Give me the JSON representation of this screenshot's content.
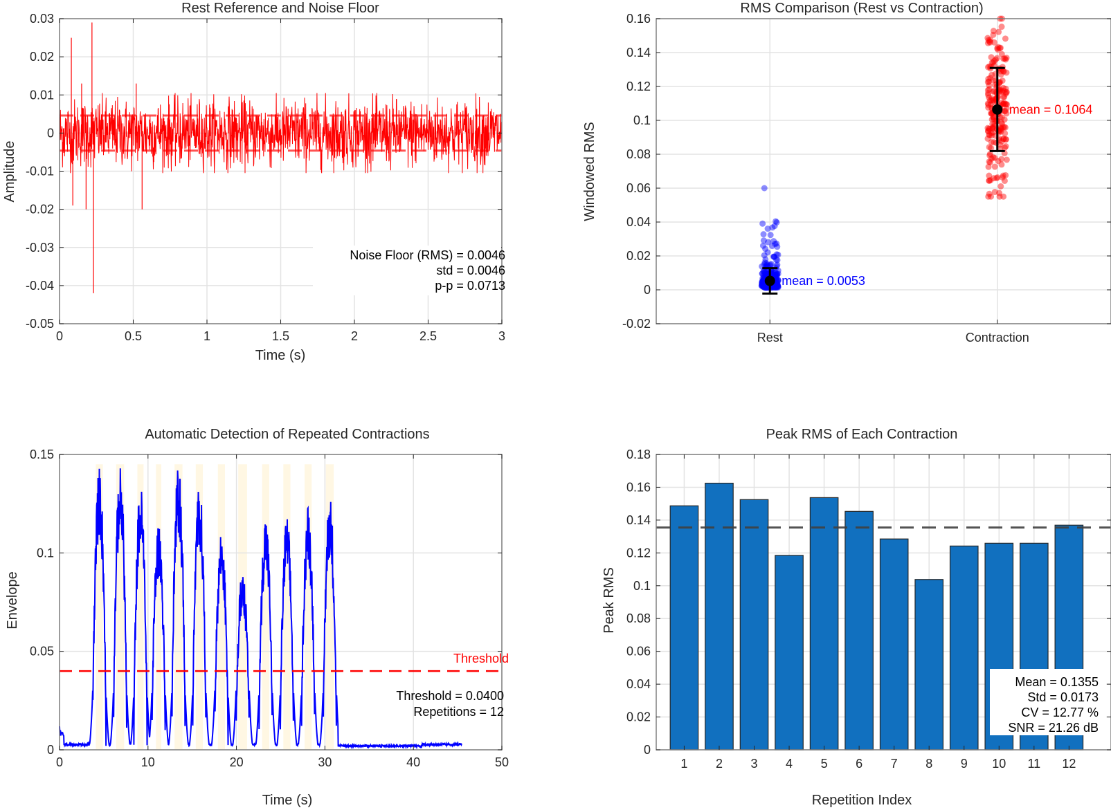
{
  "chart_data": [
    {
      "type": "line",
      "title": "Rest Reference and Noise Floor",
      "xlabel": "Time (s)",
      "ylabel": "Amplitude",
      "xlim": [
        0,
        3
      ],
      "ylim": [
        -0.05,
        0.03
      ],
      "xticks": [
        "0",
        "0.5",
        "1",
        "1.5",
        "2",
        "2.5",
        "3"
      ],
      "xtick_values": [
        0,
        0.5,
        1,
        1.5,
        2,
        2.5,
        3
      ],
      "yticks": [
        "0.03",
        "0.02",
        "0.01",
        "0",
        "-0.01",
        "-0.02",
        "-0.03",
        "-0.04",
        "-0.05"
      ],
      "ytick_values": [
        0.03,
        0.02,
        0.01,
        0,
        -0.01,
        -0.02,
        -0.03,
        -0.04,
        -0.05
      ],
      "grid": true,
      "series": [
        {
          "name": "rest-signal",
          "color": "#ff0000",
          "noise_rms": 0.0046,
          "spikes": [
            {
              "x": 0.08,
              "y": 0.025
            },
            {
              "x": 0.09,
              "y": -0.019
            },
            {
              "x": 0.15,
              "y": 0.013
            },
            {
              "x": 0.18,
              "y": -0.02
            },
            {
              "x": 0.22,
              "y": 0.029
            },
            {
              "x": 0.23,
              "y": -0.042
            },
            {
              "x": 0.56,
              "y": -0.02
            },
            {
              "x": 0.52,
              "y": 0.013
            }
          ]
        },
        {
          "name": "noise-band-upper",
          "color": "#ff3333",
          "y": 0.0046,
          "style": "dashed"
        },
        {
          "name": "noise-band-lower",
          "color": "#ff3333",
          "y": -0.0046,
          "style": "dashed"
        }
      ],
      "annotations": [
        "Noise Floor (RMS) = 0.0046",
        "std = 0.0046",
        "p-p = 0.0713"
      ]
    },
    {
      "type": "scatter",
      "title": "RMS Comparison (Rest vs Contraction)",
      "xlabel": "",
      "ylabel": "Windowed RMS",
      "categories": [
        "Rest",
        "Contraction"
      ],
      "ylim": [
        -0.02,
        0.16
      ],
      "yticks": [
        "0.16",
        "0.14",
        "0.12",
        "0.1",
        "0.08",
        "0.06",
        "0.04",
        "0.02",
        "0",
        "-0.02"
      ],
      "ytick_values": [
        0.16,
        0.14,
        0.12,
        0.1,
        0.08,
        0.06,
        0.04,
        0.02,
        0,
        -0.02
      ],
      "grid": true,
      "series": [
        {
          "name": "Rest",
          "color": "#0000ff",
          "mean": 0.0053,
          "std": 0.0075,
          "min": 0.001,
          "max": 0.06,
          "label": "mean = 0.0053"
        },
        {
          "name": "Contraction",
          "color": "#ff0000",
          "mean": 0.1064,
          "std": 0.0245,
          "min": 0.055,
          "max": 0.16,
          "label": "mean = 0.1064"
        }
      ]
    },
    {
      "type": "line",
      "title": "Automatic Detection of Repeated Contractions",
      "xlabel": "Time (s)",
      "ylabel": "Envelope",
      "xlim": [
        0,
        50
      ],
      "ylim": [
        0,
        0.15
      ],
      "xticks": [
        "0",
        "10",
        "20",
        "30",
        "40",
        "50"
      ],
      "xtick_values": [
        0,
        10,
        20,
        30,
        40,
        50
      ],
      "yticks": [
        "0.15",
        "0.1",
        "0.05",
        "0"
      ],
      "ytick_values": [
        0.15,
        0.1,
        0.05,
        0
      ],
      "grid": true,
      "threshold": 0.04,
      "threshold_label": "Threshold",
      "detected_windows": [
        [
          4.1,
          4.9
        ],
        [
          6.4,
          7.3
        ],
        [
          8.8,
          9.5
        ],
        [
          10.9,
          11.5
        ],
        [
          13.0,
          13.9
        ],
        [
          15.4,
          16.2
        ],
        [
          17.9,
          18.7
        ],
        [
          20.2,
          21.2
        ],
        [
          22.9,
          23.7
        ],
        [
          25.3,
          26.1
        ],
        [
          27.7,
          28.5
        ],
        [
          30.1,
          31.0
        ]
      ],
      "peaks": [
        0.144,
        0.144,
        0.135,
        0.116,
        0.145,
        0.136,
        0.112,
        0.093,
        0.12,
        0.119,
        0.125,
        0.13
      ],
      "signal_end": 45.5,
      "series_color": "#0000ff",
      "annotations": [
        "Threshold = 0.0400",
        "Repetitions = 12"
      ]
    },
    {
      "type": "bar",
      "title": "Peak RMS of Each Contraction",
      "xlabel": "Repetition Index",
      "ylabel": "Peak RMS",
      "categories": [
        "1",
        "2",
        "3",
        "4",
        "5",
        "6",
        "7",
        "8",
        "9",
        "10",
        "11",
        "12"
      ],
      "values": [
        0.1487,
        0.1625,
        0.1525,
        0.1185,
        0.1537,
        0.1453,
        0.1285,
        0.1038,
        0.1242,
        0.1259,
        0.1259,
        0.1369
      ],
      "ylim": [
        0,
        0.18
      ],
      "yticks": [
        "0.18",
        "0.16",
        "0.14",
        "0.12",
        "0.1",
        "0.08",
        "0.06",
        "0.04",
        "0.02",
        "0"
      ],
      "ytick_values": [
        0.18,
        0.16,
        0.14,
        0.12,
        0.1,
        0.08,
        0.06,
        0.04,
        0.02,
        0
      ],
      "xlim": [
        0.2,
        13.2
      ],
      "mean_line": 0.1355,
      "bar_color": "#1170bf",
      "grid": true,
      "annotations": [
        "Mean = 0.1355",
        "Std = 0.0173",
        "CV = 12.77 %",
        "SNR = 21.26 dB"
      ]
    }
  ]
}
